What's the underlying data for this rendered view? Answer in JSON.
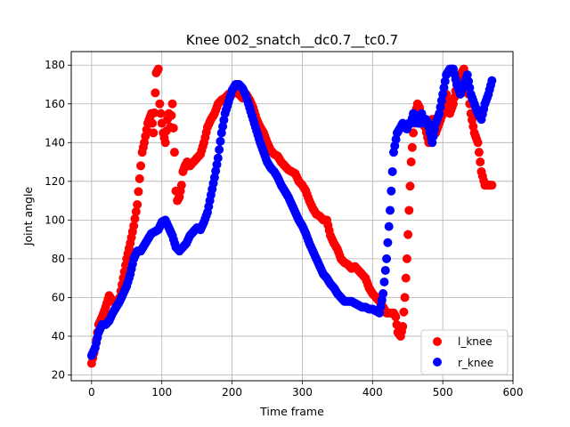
{
  "chart_data": {
    "type": "scatter",
    "title": "Knee 002_snatch__dc0.7__tc0.7",
    "xlabel": "Time frame",
    "ylabel": "Joint angle",
    "xlim": [
      -29,
      600
    ],
    "ylim": [
      17,
      187
    ],
    "xticks": [
      0,
      100,
      200,
      300,
      400,
      500,
      600
    ],
    "yticks": [
      20,
      40,
      60,
      80,
      100,
      120,
      140,
      160,
      180
    ],
    "grid": true,
    "legend_position": "lower-right",
    "series": [
      {
        "name": "l_knee",
        "color": "#ff0000",
        "x": [
          0,
          5,
          10,
          15,
          20,
          25,
          30,
          35,
          40,
          45,
          50,
          55,
          60,
          65,
          70,
          72,
          75,
          80,
          85,
          88,
          92,
          95,
          97,
          100,
          102,
          105,
          108,
          110,
          112,
          115,
          118,
          120,
          122,
          125,
          128,
          130,
          133,
          136,
          140,
          145,
          150,
          155,
          160,
          165,
          170,
          175,
          180,
          185,
          190,
          195,
          200,
          205,
          210,
          215,
          220,
          225,
          230,
          235,
          240,
          245,
          250,
          255,
          260,
          265,
          270,
          275,
          280,
          285,
          290,
          295,
          300,
          305,
          310,
          315,
          320,
          325,
          330,
          335,
          340,
          345,
          350,
          355,
          360,
          365,
          370,
          375,
          380,
          385,
          390,
          395,
          400,
          405,
          410,
          415,
          420,
          425,
          430,
          433,
          436,
          440,
          443,
          446,
          449,
          452,
          455,
          458,
          461,
          464,
          467,
          470,
          475,
          480,
          485,
          490,
          495,
          500,
          505,
          510,
          515,
          520,
          525,
          530,
          535,
          540,
          545,
          550,
          555,
          560,
          565,
          570
        ],
        "y": [
          26,
          34,
          46,
          50,
          55,
          61,
          58,
          57,
          60,
          70,
          80,
          88,
          97,
          108,
          128,
          135,
          140,
          150,
          155,
          145,
          176,
          178,
          160,
          150,
          145,
          140,
          152,
          155,
          148,
          160,
          135,
          115,
          110,
          112,
          118,
          125,
          128,
          130,
          128,
          130,
          132,
          134,
          140,
          148,
          152,
          155,
          160,
          162,
          163,
          165,
          165,
          166,
          165,
          163,
          165,
          162,
          158,
          152,
          148,
          145,
          140,
          136,
          134,
          133,
          130,
          128,
          126,
          125,
          124,
          120,
          118,
          115,
          110,
          106,
          103,
          102,
          100,
          100,
          92,
          88,
          85,
          80,
          78,
          77,
          75,
          76,
          74,
          72,
          70,
          65,
          62,
          60,
          58,
          55,
          52,
          52,
          52,
          50,
          42,
          40,
          45,
          60,
          80,
          105,
          130,
          145,
          155,
          160,
          158,
          150,
          148,
          140,
          152,
          145,
          150,
          155,
          165,
          155,
          160,
          170,
          175,
          178,
          170,
          155,
          145,
          140,
          125,
          118,
          118,
          118
        ]
      },
      {
        "name": "r_knee",
        "color": "#0000ff",
        "x": [
          0,
          5,
          10,
          15,
          20,
          25,
          30,
          35,
          40,
          45,
          50,
          55,
          60,
          65,
          70,
          75,
          80,
          85,
          90,
          95,
          100,
          105,
          110,
          115,
          120,
          125,
          130,
          135,
          140,
          145,
          150,
          155,
          160,
          165,
          170,
          175,
          180,
          185,
          190,
          195,
          200,
          205,
          210,
          215,
          220,
          225,
          230,
          235,
          240,
          245,
          250,
          255,
          260,
          265,
          270,
          275,
          280,
          285,
          290,
          295,
          300,
          305,
          310,
          315,
          320,
          325,
          330,
          335,
          340,
          345,
          350,
          355,
          360,
          365,
          370,
          375,
          380,
          385,
          390,
          395,
          400,
          405,
          410,
          415,
          420,
          425,
          430,
          435,
          440,
          443,
          446,
          449,
          452,
          455,
          458,
          461,
          464,
          467,
          470,
          473,
          476,
          479,
          482,
          485,
          490,
          495,
          500,
          505,
          510,
          515,
          520,
          525,
          530,
          535,
          540,
          545,
          550,
          555,
          560,
          565,
          570
        ],
        "y": [
          30,
          34,
          42,
          46,
          46,
          48,
          52,
          55,
          58,
          62,
          66,
          72,
          80,
          84,
          84,
          87,
          90,
          93,
          94,
          95,
          99,
          100,
          96,
          92,
          86,
          84,
          86,
          88,
          92,
          94,
          96,
          95,
          99,
          104,
          113,
          122,
          132,
          145,
          155,
          161,
          167,
          170,
          170,
          168,
          164,
          158,
          152,
          146,
          140,
          135,
          130,
          127,
          125,
          122,
          118,
          115,
          112,
          108,
          104,
          100,
          97,
          93,
          88,
          84,
          80,
          76,
          72,
          70,
          67,
          65,
          62,
          60,
          58,
          58,
          58,
          57,
          56,
          55,
          55,
          54,
          54,
          53,
          52,
          62,
          80,
          105,
          135,
          145,
          148,
          150,
          148,
          147,
          150,
          150,
          155,
          154,
          150,
          150,
          155,
          150,
          152,
          150,
          145,
          140,
          150,
          155,
          165,
          175,
          178,
          178,
          170,
          165,
          170,
          175,
          165,
          160,
          155,
          152,
          160,
          165,
          172
        ]
      }
    ]
  }
}
